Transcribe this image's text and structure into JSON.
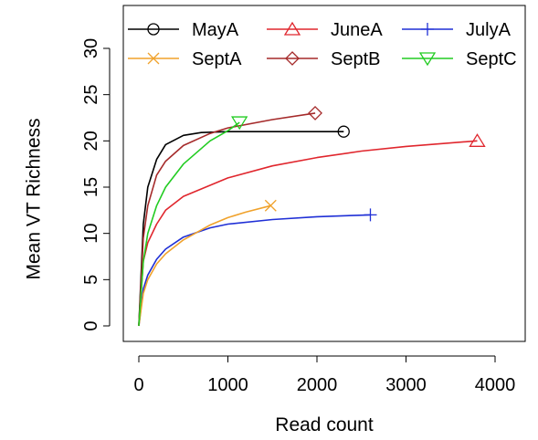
{
  "chart_data": {
    "type": "line",
    "title": "",
    "xlabel": "Read count",
    "ylabel": "Mean VT Richness",
    "xlim": [
      0,
      4000
    ],
    "ylim": [
      0,
      30
    ],
    "x_ticks": [
      "0",
      "1000",
      "2000",
      "3000",
      "4000"
    ],
    "y_ticks": [
      "0",
      "5",
      "10",
      "15",
      "20",
      "25",
      "30"
    ],
    "grid": false,
    "legend_position": "top",
    "series": [
      {
        "name": "MayA",
        "color": "#000000",
        "marker": "circle",
        "points": [
          [
            0,
            0
          ],
          [
            50,
            11
          ],
          [
            100,
            15
          ],
          [
            200,
            18
          ],
          [
            300,
            19.6
          ],
          [
            500,
            20.6
          ],
          [
            700,
            20.9
          ],
          [
            1000,
            21
          ],
          [
            1500,
            21
          ],
          [
            2300,
            21
          ]
        ]
      },
      {
        "name": "JuneA",
        "color": "#e0262d",
        "marker": "triangle-up",
        "points": [
          [
            0,
            0
          ],
          [
            50,
            7
          ],
          [
            100,
            9
          ],
          [
            200,
            11
          ],
          [
            300,
            12.5
          ],
          [
            500,
            14
          ],
          [
            1000,
            16
          ],
          [
            1500,
            17.3
          ],
          [
            2000,
            18.2
          ],
          [
            2500,
            18.9
          ],
          [
            3000,
            19.4
          ],
          [
            3800,
            20
          ]
        ]
      },
      {
        "name": "JulyA",
        "color": "#1f2fd6",
        "marker": "plus",
        "points": [
          [
            0,
            0
          ],
          [
            50,
            4
          ],
          [
            100,
            5.5
          ],
          [
            200,
            7.2
          ],
          [
            300,
            8.3
          ],
          [
            500,
            9.6
          ],
          [
            800,
            10.6
          ],
          [
            1000,
            11
          ],
          [
            1500,
            11.5
          ],
          [
            2000,
            11.8
          ],
          [
            2600,
            12
          ]
        ]
      },
      {
        "name": "SeptA",
        "color": "#f0a22c",
        "marker": "cross",
        "points": [
          [
            0,
            0
          ],
          [
            50,
            3.5
          ],
          [
            100,
            5
          ],
          [
            200,
            6.7
          ],
          [
            300,
            7.8
          ],
          [
            500,
            9.3
          ],
          [
            800,
            10.9
          ],
          [
            1000,
            11.7
          ],
          [
            1200,
            12.3
          ],
          [
            1480,
            13
          ]
        ]
      },
      {
        "name": "SeptB",
        "color": "#a52a2a",
        "marker": "diamond",
        "points": [
          [
            0,
            0
          ],
          [
            50,
            9.5
          ],
          [
            100,
            13
          ],
          [
            200,
            16.3
          ],
          [
            300,
            17.8
          ],
          [
            500,
            19.5
          ],
          [
            800,
            20.8
          ],
          [
            1000,
            21.4
          ],
          [
            1500,
            22.3
          ],
          [
            1980,
            23
          ]
        ]
      },
      {
        "name": "SeptC",
        "color": "#22cc22",
        "marker": "triangle-down",
        "points": [
          [
            0,
            0
          ],
          [
            50,
            7
          ],
          [
            100,
            10
          ],
          [
            200,
            13
          ],
          [
            300,
            15
          ],
          [
            500,
            17.5
          ],
          [
            800,
            20
          ],
          [
            1000,
            21.1
          ],
          [
            1130,
            22
          ]
        ]
      }
    ]
  }
}
